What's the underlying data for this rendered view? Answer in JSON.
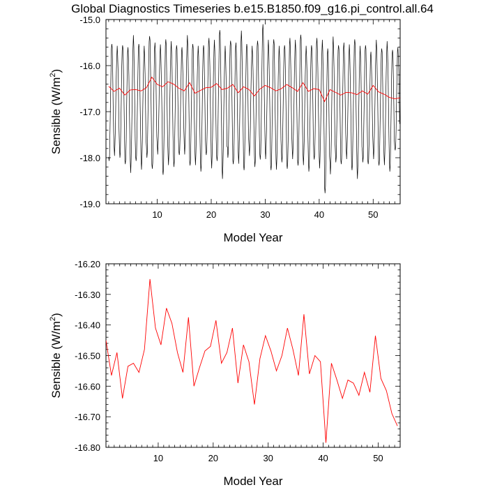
{
  "title": "Global Diagnostics Timeseries b.e15.B1850.f09_g16.pi_control.all.64",
  "chart_data": [
    {
      "type": "line",
      "xlabel": "Model Year",
      "ylabel_main": "Sensible (W/m",
      "ylabel_sup": "2",
      "ylabel_close": ")",
      "xlim": [
        0.5,
        55
      ],
      "ylim": [
        -19.0,
        -15.0
      ],
      "xticks": [
        10,
        20,
        30,
        40,
        50
      ],
      "yticks": [
        -19.0,
        -18.0,
        -17.0,
        -16.0,
        -15.0
      ],
      "ytick_labels": [
        "-19.0",
        "-18.0",
        "-17.0",
        "-16.0",
        "-15.0"
      ],
      "series": [
        {
          "color": "#000000",
          "annual_cycle_min": [
            -18.1,
            -17.9,
            -18.0,
            -18.2,
            -18.3,
            -18.1,
            -18.2,
            -18.0,
            -18.3,
            -17.9,
            -18.4,
            -18.1,
            -18.2,
            -18.0,
            -17.9,
            -18.2,
            -18.1,
            -18.3,
            -18.0,
            -18.2,
            -18.1,
            -18.4,
            -18.0,
            -18.2,
            -18.1,
            -18.3,
            -17.9,
            -18.2,
            -18.1,
            -18.0,
            -18.3,
            -18.2,
            -18.1,
            -18.3,
            -18.0,
            -18.2,
            -18.1,
            -18.3,
            -18.1,
            -18.2,
            -18.8,
            -18.3,
            -18.1,
            -18.2,
            -18.0,
            -18.3,
            -18.4,
            -18.1,
            -18.2,
            -18.0,
            -18.2,
            -18.1,
            -18.3,
            -17.9
          ],
          "annual_cycle_max": [
            -15.5,
            -15.6,
            -15.5,
            -15.6,
            -15.4,
            -15.5,
            -15.6,
            -15.3,
            -15.5,
            -15.6,
            -15.4,
            -15.5,
            -15.5,
            -15.6,
            -15.4,
            -15.5,
            -15.6,
            -15.5,
            -15.4,
            -15.5,
            -15.2,
            -15.6,
            -15.4,
            -15.5,
            -15.3,
            -15.5,
            -15.6,
            -15.4,
            -15.1,
            -15.5,
            -15.4,
            -15.6,
            -15.5,
            -15.4,
            -15.5,
            -15.3,
            -15.6,
            -15.5,
            -15.4,
            -15.5,
            -15.6,
            -15.4,
            -15.5,
            -15.5,
            -15.6,
            -15.4,
            -15.6,
            -15.5,
            -15.7,
            -15.5,
            -15.6,
            -15.5,
            -15.6,
            -15.6
          ]
        },
        {
          "color": "#ff0000",
          "x": [
            1,
            2,
            3,
            4,
            5,
            6,
            7,
            8,
            9,
            10,
            11,
            12,
            13,
            14,
            15,
            16,
            17,
            18,
            19,
            20,
            21,
            22,
            23,
            24,
            25,
            26,
            27,
            28,
            29,
            30,
            31,
            32,
            33,
            34,
            35,
            36,
            37,
            38,
            39,
            40,
            41,
            42,
            43,
            44,
            45,
            46,
            47,
            48,
            49,
            50,
            51,
            52,
            53,
            54,
            55
          ],
          "y": [
            -16.45,
            -16.56,
            -16.49,
            -16.64,
            -16.53,
            -16.52,
            -16.55,
            -16.48,
            -16.25,
            -16.41,
            -16.46,
            -16.35,
            -16.4,
            -16.49,
            -16.55,
            -16.37,
            -16.6,
            -16.54,
            -16.48,
            -16.47,
            -16.39,
            -16.52,
            -16.49,
            -16.41,
            -16.59,
            -16.46,
            -16.52,
            -16.66,
            -16.51,
            -16.43,
            -16.48,
            -16.55,
            -16.5,
            -16.41,
            -16.48,
            -16.56,
            -16.37,
            -16.56,
            -16.5,
            -16.52,
            -16.78,
            -16.52,
            -16.58,
            -16.64,
            -16.58,
            -16.59,
            -16.63,
            -16.55,
            -16.62,
            -16.43,
            -16.57,
            -16.62,
            -16.69,
            -16.72,
            -16.7
          ]
        }
      ]
    },
    {
      "type": "line",
      "xlabel": "Model Year",
      "ylabel_main": "Sensible (W/m",
      "ylabel_sup": "2",
      "ylabel_close": ")",
      "xlim": [
        0.5,
        54
      ],
      "ylim": [
        -16.8,
        -16.2
      ],
      "xticks": [
        10,
        20,
        30,
        40,
        50
      ],
      "yticks": [
        -16.8,
        -16.7,
        -16.6,
        -16.5,
        -16.4,
        -16.3,
        -16.2
      ],
      "ytick_labels": [
        "-16.80",
        "-16.70",
        "-16.60",
        "-16.50",
        "-16.40",
        "-16.30",
        "-16.20"
      ],
      "series": [
        {
          "color": "#ff0000",
          "x": [
            0.5,
            1.5,
            2.5,
            3.5,
            4.5,
            5.5,
            6.5,
            7.5,
            8.5,
            9.5,
            10.5,
            11.5,
            12.5,
            13.5,
            14.5,
            15.5,
            16.5,
            17.5,
            18.5,
            19.5,
            20.5,
            21.5,
            22.5,
            23.5,
            24.5,
            25.5,
            26.5,
            27.5,
            28.5,
            29.5,
            30.5,
            31.5,
            32.5,
            33.5,
            34.5,
            35.5,
            36.5,
            37.5,
            38.5,
            39.5,
            40.5,
            41.5,
            42.5,
            43.5,
            44.5,
            45.5,
            46.5,
            47.5,
            48.5,
            49.5,
            50.5,
            51.5,
            52.5,
            53.5
          ],
          "y": [
            -16.45,
            -16.565,
            -16.49,
            -16.64,
            -16.535,
            -16.525,
            -16.555,
            -16.48,
            -16.25,
            -16.41,
            -16.465,
            -16.345,
            -16.395,
            -16.49,
            -16.555,
            -16.375,
            -16.6,
            -16.54,
            -16.485,
            -16.47,
            -16.385,
            -16.525,
            -16.49,
            -16.41,
            -16.59,
            -16.465,
            -16.52,
            -16.66,
            -16.51,
            -16.435,
            -16.485,
            -16.55,
            -16.5,
            -16.41,
            -16.48,
            -16.565,
            -16.365,
            -16.56,
            -16.5,
            -16.52,
            -16.785,
            -16.525,
            -16.58,
            -16.64,
            -16.58,
            -16.59,
            -16.63,
            -16.555,
            -16.62,
            -16.435,
            -16.575,
            -16.615,
            -16.69,
            -16.73
          ]
        }
      ]
    }
  ]
}
